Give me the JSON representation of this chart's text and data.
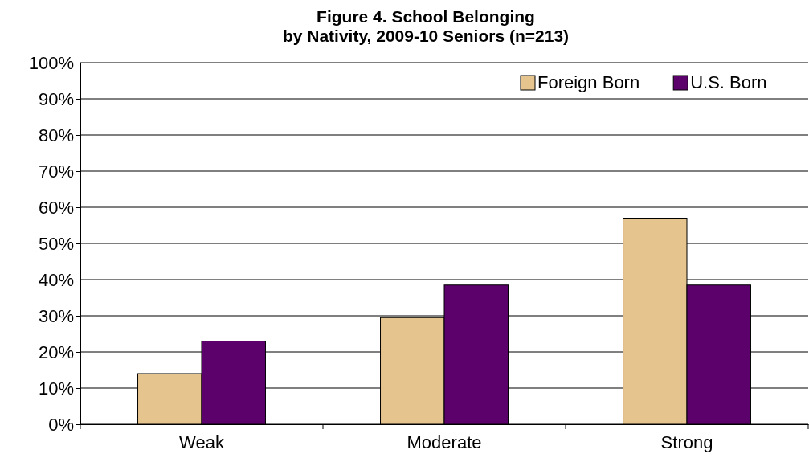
{
  "chart_data": {
    "type": "bar",
    "title": "Figure 4. School Belonging\nby Nativity, 2009-10 Seniors (n=213)",
    "categories": [
      "Weak",
      "Moderate",
      "Strong"
    ],
    "series": [
      {
        "name": "Foreign Born",
        "color": "#e6c48e",
        "values": [
          14,
          29.5,
          57
        ]
      },
      {
        "name": "U.S. Born",
        "color": "#5c006b",
        "values": [
          23,
          38.5,
          38.5
        ]
      }
    ],
    "ylim": [
      0,
      100
    ],
    "yticks": [
      {
        "value": 0,
        "label": "0%"
      },
      {
        "value": 10,
        "label": "10%"
      },
      {
        "value": 20,
        "label": "20%"
      },
      {
        "value": 30,
        "label": "30%"
      },
      {
        "value": 40,
        "label": "40%"
      },
      {
        "value": 50,
        "label": "50%"
      },
      {
        "value": 60,
        "label": "60%"
      },
      {
        "value": 70,
        "label": "70%"
      },
      {
        "value": 80,
        "label": "80%"
      },
      {
        "value": 90,
        "label": "90%"
      },
      {
        "value": 100,
        "label": "100%"
      }
    ],
    "grid": "y",
    "legend": "top right"
  }
}
